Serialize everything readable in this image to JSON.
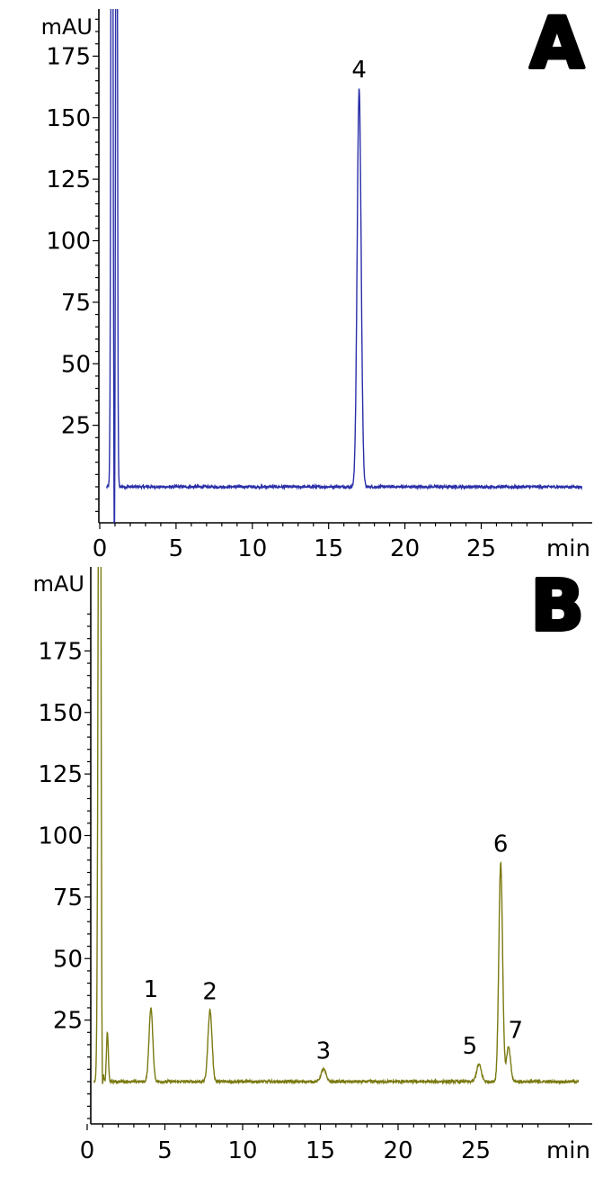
{
  "chart_data": [
    {
      "type": "line",
      "panel_label": "A",
      "y_unit": "mAU",
      "x_unit": "min",
      "xlim": [
        0,
        32
      ],
      "ylim": [
        -30,
        193
      ],
      "x_ticks": [
        0,
        5,
        10,
        15,
        20,
        25
      ],
      "y_ticks": [
        25,
        50,
        75,
        100,
        125,
        150,
        175
      ],
      "grid": false,
      "series": [
        {
          "color": "#2a2fa8",
          "peaks": [
            {
              "label": "",
              "x": 0.8,
              "height": 400,
              "width": 0.06
            },
            {
              "label": "",
              "x": 1.1,
              "height": 400,
              "width": 0.05
            },
            {
              "label": "4",
              "x": 17.0,
              "height": 162,
              "width": 0.13
            }
          ]
        }
      ]
    },
    {
      "type": "line",
      "panel_label": "B",
      "y_unit": "mAU",
      "x_unit": "min",
      "xlim": [
        0,
        32
      ],
      "ylim": [
        -23,
        193
      ],
      "x_ticks": [
        0,
        5,
        10,
        15,
        20,
        25
      ],
      "y_ticks": [
        25,
        50,
        75,
        100,
        125,
        150,
        175
      ],
      "grid": false,
      "series": [
        {
          "color": "#7a7a12",
          "peaks": [
            {
              "label": "",
              "x": 0.8,
              "height": 400,
              "width": 0.08
            },
            {
              "label": "",
              "x": 1.3,
              "height": 20,
              "width": 0.06
            },
            {
              "label": "1",
              "x": 4.1,
              "height": 30,
              "width": 0.12
            },
            {
              "label": "2",
              "x": 7.9,
              "height": 29,
              "width": 0.13
            },
            {
              "label": "3",
              "x": 15.2,
              "height": 5,
              "width": 0.16
            },
            {
              "label": "5",
              "x": 25.2,
              "height": 7,
              "width": 0.15
            },
            {
              "label": "6",
              "x": 26.6,
              "height": 89,
              "width": 0.12
            },
            {
              "label": "7",
              "x": 27.1,
              "height": 14,
              "width": 0.13
            }
          ]
        }
      ]
    }
  ]
}
